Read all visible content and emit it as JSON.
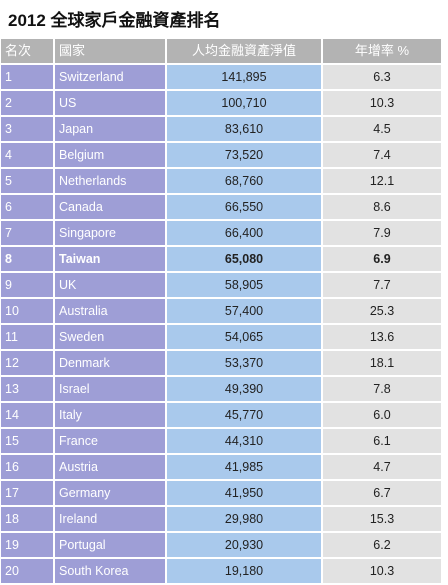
{
  "title": "2012 全球家戶金融資產排名",
  "table": {
    "header": [
      "名次",
      "國家",
      "人均金融資產淨值",
      "年增率 %"
    ],
    "bold_row": 7,
    "rows": [
      [
        "1",
        "Switzerland",
        "141,895",
        "6.3"
      ],
      [
        "2",
        "US",
        "100,710",
        "10.3"
      ],
      [
        "3",
        "Japan",
        "83,610",
        "4.5"
      ],
      [
        "4",
        "Belgium",
        "73,520",
        "7.4"
      ],
      [
        "5",
        "Netherlands",
        "68,760",
        "12.1"
      ],
      [
        "6",
        "Canada",
        "66,550",
        "8.6"
      ],
      [
        "7",
        "Singapore",
        "66,400",
        "7.9"
      ],
      [
        "8",
        "Taiwan",
        "65,080",
        "6.9"
      ],
      [
        "9",
        "UK",
        "58,905",
        "7.7"
      ],
      [
        "10",
        "Australia",
        "57,400",
        "25.3"
      ],
      [
        "11",
        "Sweden",
        "54,065",
        "13.6"
      ],
      [
        "12",
        "Denmark",
        "53,370",
        "18.1"
      ],
      [
        "13",
        "Israel",
        "49,390",
        "7.8"
      ],
      [
        "14",
        "Italy",
        "45,770",
        "6.0"
      ],
      [
        "15",
        "France",
        "44,310",
        "6.1"
      ],
      [
        "16",
        "Austria",
        "41,985",
        "4.7"
      ],
      [
        "17",
        "Germany",
        "41,950",
        "6.7"
      ],
      [
        "18",
        "Ireland",
        "29,980",
        "15.3"
      ],
      [
        "19",
        "Portugal",
        "20,930",
        "6.2"
      ],
      [
        "20",
        "South Korea",
        "19,180",
        "10.3"
      ]
    ]
  }
}
